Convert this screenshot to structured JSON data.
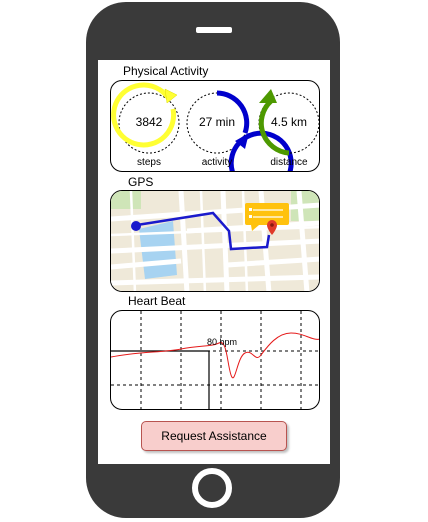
{
  "physical_activity": {
    "title": "Physical Activity",
    "metrics": [
      {
        "value": "3842",
        "label": "steps",
        "color": "#ffff33"
      },
      {
        "value": "27 min",
        "label": "activity",
        "color": "#0000cc"
      },
      {
        "value": "4.5 km",
        "label": "distance",
        "color": "#4d9900"
      }
    ]
  },
  "gps": {
    "title": "GPS",
    "map_icon": "map-pin-icon",
    "location_card_icon": "location-card-icon"
  },
  "heart_beat": {
    "title": "Heart Beat",
    "bpm_label": "80 bpm",
    "line_color": "#e51a1a"
  },
  "actions": {
    "request_label": "Request Assistance"
  }
}
